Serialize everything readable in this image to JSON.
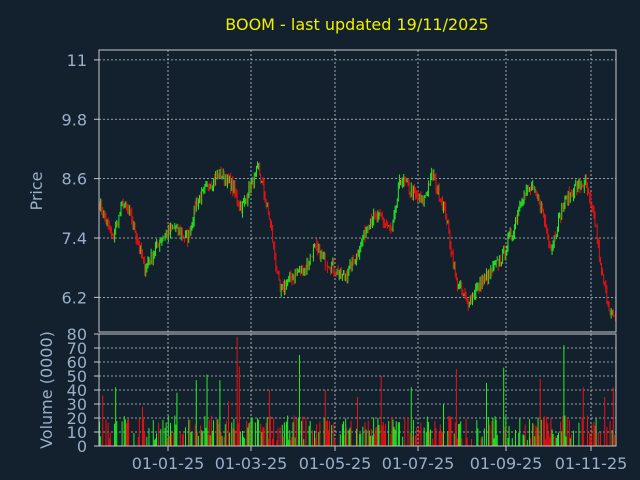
{
  "chart_data": {
    "type": "candlestick+bar",
    "title": "BOOM - last updated 19/11/2025",
    "colors": {
      "background": "#13202e",
      "up": "#22ee22",
      "down": "#ee1111",
      "title": "#f0f000",
      "axis_text": "#9ab0c8",
      "grid": "#c8c8c8"
    },
    "x_tick_labels": [
      "01-01-25",
      "01-03-25",
      "01-05-25",
      "01-07-25",
      "01-09-25",
      "01-11-25"
    ],
    "price_panel": {
      "ylabel": "Price",
      "ylim": [
        5.5,
        11.2
      ],
      "y_ticks": [
        6.2,
        7.4,
        8.6,
        9.8,
        11
      ],
      "y_tick_labels": [
        "6.2",
        "7.4",
        "8.6",
        "9.8",
        "11"
      ],
      "grid": true,
      "close_anchors": [
        [
          0,
          8.1
        ],
        [
          12,
          7.4
        ],
        [
          22,
          8.1
        ],
        [
          30,
          7.8
        ],
        [
          42,
          6.8
        ],
        [
          58,
          7.4
        ],
        [
          70,
          7.6
        ],
        [
          82,
          7.4
        ],
        [
          90,
          8.1
        ],
        [
          102,
          8.5
        ],
        [
          112,
          8.7
        ],
        [
          122,
          8.5
        ],
        [
          132,
          8.0
        ],
        [
          148,
          8.8
        ],
        [
          158,
          7.8
        ],
        [
          168,
          6.3
        ],
        [
          178,
          6.6
        ],
        [
          192,
          6.8
        ],
        [
          200,
          7.2
        ],
        [
          212,
          6.9
        ],
        [
          228,
          6.6
        ],
        [
          240,
          7.1
        ],
        [
          252,
          7.8
        ],
        [
          262,
          7.8
        ],
        [
          272,
          7.5
        ],
        [
          280,
          8.6
        ],
        [
          292,
          8.3
        ],
        [
          300,
          8.1
        ],
        [
          310,
          8.7
        ],
        [
          322,
          7.9
        ],
        [
          332,
          6.5
        ],
        [
          342,
          6.1
        ],
        [
          352,
          6.4
        ],
        [
          364,
          6.7
        ],
        [
          374,
          7.0
        ],
        [
          384,
          7.5
        ],
        [
          392,
          8.2
        ],
        [
          402,
          8.4
        ],
        [
          410,
          8.1
        ],
        [
          420,
          7.2
        ],
        [
          432,
          8.1
        ],
        [
          442,
          8.4
        ],
        [
          452,
          8.5
        ],
        [
          462,
          7.6
        ],
        [
          466,
          6.8
        ],
        [
          474,
          6.0
        ],
        [
          480,
          5.7
        ]
      ]
    },
    "volume_panel": {
      "ylabel": "Volume (0000)",
      "ylim": [
        0,
        80
      ],
      "y_ticks": [
        0,
        10,
        20,
        30,
        40,
        50,
        60,
        70,
        80
      ],
      "y_tick_labels": [
        "0",
        "10",
        "20",
        "30",
        "40",
        "50",
        "60",
        "70",
        "80"
      ],
      "grid": true,
      "base_level": 18,
      "spikes": [
        [
          3,
          36
        ],
        [
          15,
          42
        ],
        [
          40,
          28
        ],
        [
          72,
          38
        ],
        [
          90,
          47
        ],
        [
          100,
          51
        ],
        [
          112,
          47
        ],
        [
          120,
          32
        ],
        [
          128,
          78
        ],
        [
          130,
          57
        ],
        [
          158,
          40
        ],
        [
          186,
          65
        ],
        [
          210,
          40
        ],
        [
          240,
          35
        ],
        [
          262,
          50
        ],
        [
          290,
          42
        ],
        [
          320,
          30
        ],
        [
          332,
          55
        ],
        [
          360,
          45
        ],
        [
          376,
          56
        ],
        [
          410,
          48
        ],
        [
          432,
          72
        ],
        [
          450,
          42
        ],
        [
          470,
          35
        ],
        [
          478,
          42
        ]
      ]
    }
  }
}
